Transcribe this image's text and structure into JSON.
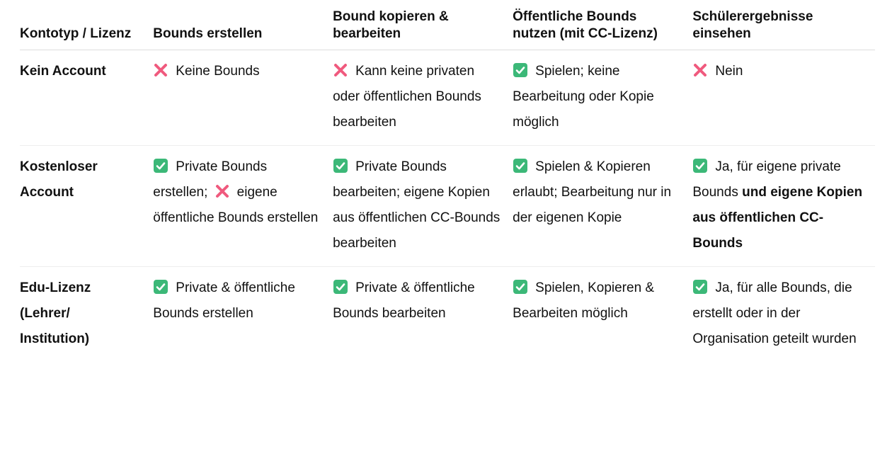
{
  "headers": [
    "Kontotyp / Lizenz",
    "Bounds erstellen",
    "Bound kopieren & bearbeiten",
    "Öffentliche Bounds nutzen (mit CC-Lizenz)",
    "Schülerergebnisse einsehen"
  ],
  "rows": [
    {
      "type": "Kein Account",
      "create": {
        "icon": "cross-mark-icon",
        "text": "Keine Bounds"
      },
      "copy": {
        "icon": "cross-mark-icon",
        "text": "Kann keine privaten oder öffentlichen Bounds bearbeiten"
      },
      "public": {
        "icon": "check-mark-icon",
        "text": "Spielen; keine Bearbeitung oder Kopie möglich"
      },
      "results": {
        "icon": "cross-mark-icon",
        "text": "Nein"
      }
    },
    {
      "type": "Kostenloser Account",
      "create": {
        "icon": "check-mark-icon",
        "text": "Private Bounds erstellen;",
        "icon2": "cross-mark-icon",
        "text2": "eigene öffentliche Bounds erstellen"
      },
      "copy": {
        "icon": "check-mark-icon",
        "text": "Private Bounds bearbeiten; eigene Kopien aus öffentlichen CC-Bounds bearbeiten"
      },
      "public": {
        "icon": "check-mark-icon",
        "text": "Spielen & Kopieren erlaubt; Bearbeitung nur in der eigenen Kopie"
      },
      "results": {
        "icon": "check-mark-icon",
        "text": "Ja, für eigene private Bounds",
        "bold": "und eigene Kopien aus öffentlichen CC-Bounds"
      }
    },
    {
      "type": "Edu-Lizenz (Lehrer/ Institution)",
      "create": {
        "icon": "check-mark-icon",
        "text": "Private & öffentliche Bounds erstellen"
      },
      "copy": {
        "icon": "check-mark-icon",
        "text": "Private & öffentliche Bounds bearbeiten"
      },
      "public": {
        "icon": "check-mark-icon",
        "text": "Spielen, Kopieren & Bearbeiten möglich"
      },
      "results": {
        "icon": "check-mark-icon",
        "text": "Ja, für alle Bounds, die erstellt oder in der Organisation geteilt wurden"
      }
    }
  ],
  "colors": {
    "cross": "#f05a7e",
    "check": "#3cb878"
  }
}
